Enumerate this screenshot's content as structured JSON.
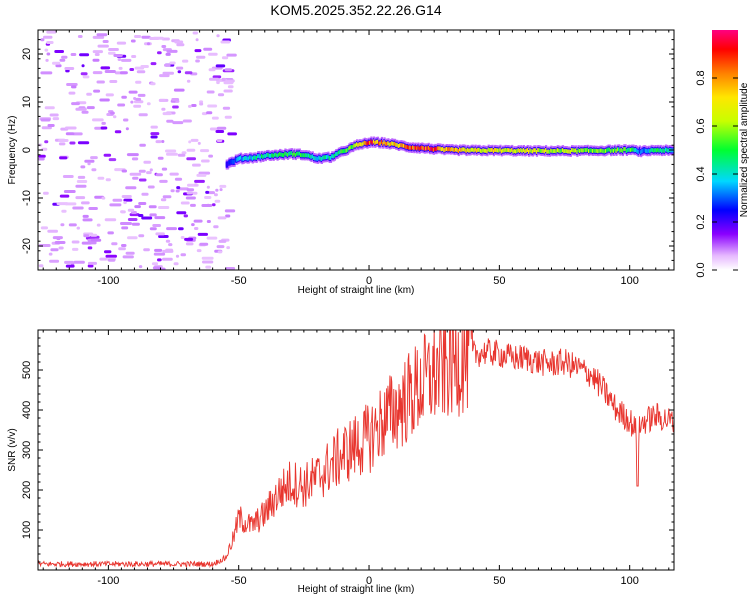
{
  "title": "KOM5.2025.352.22.26.G14",
  "chart_data": [
    {
      "type": "heatmap",
      "xlabel": "Height of straight line (km)",
      "ylabel": "Frequency (Hz)",
      "xlim": [
        -127,
        117
      ],
      "ylim": [
        -25,
        25
      ],
      "xticks": [
        -100,
        -50,
        0,
        50,
        100
      ],
      "yticks": [
        -20,
        -10,
        0,
        10,
        20
      ],
      "ridge": {
        "x": [
          -55,
          -50,
          -45,
          -40,
          -35,
          -30,
          -25,
          -20,
          -15,
          -10,
          -5,
          0,
          5,
          10,
          15,
          20,
          25,
          30,
          40,
          50,
          60,
          70,
          80,
          90,
          100,
          104,
          110,
          117
        ],
        "freq": [
          -3,
          -1.8,
          -1.6,
          -1.2,
          -1.0,
          -0.8,
          -1.0,
          -1.8,
          -1.5,
          -0.2,
          1.0,
          1.6,
          1.5,
          1.1,
          0.6,
          0.4,
          0.2,
          0.0,
          -0.1,
          -0.1,
          -0.2,
          -0.2,
          -0.2,
          -0.1,
          0.0,
          -0.3,
          0.0,
          -0.2
        ],
        "amplitude": [
          0.2,
          0.35,
          0.4,
          0.45,
          0.45,
          0.5,
          0.45,
          0.4,
          0.45,
          0.5,
          0.6,
          0.9,
          0.75,
          0.7,
          0.8,
          0.85,
          0.85,
          0.75,
          0.7,
          0.65,
          0.65,
          0.6,
          0.6,
          0.55,
          0.5,
          0.3,
          0.45,
          0.4
        ]
      },
      "noise_region": [
        -127,
        -60
      ],
      "colorbar": {
        "label": "Normalized spectral amplitude",
        "range": [
          0,
          1
        ],
        "ticks": [
          0.0,
          0.2,
          0.4,
          0.6,
          0.8
        ],
        "tick_labels": [
          "0.0",
          "0.2",
          "0.4",
          "0.6",
          "0.8"
        ]
      }
    },
    {
      "type": "line",
      "xlabel": "Height of straight line (km)",
      "ylabel": "SNR (v/v)",
      "xlim": [
        -127,
        117
      ],
      "ylim": [
        0,
        600
      ],
      "xticks": [
        -100,
        -50,
        0,
        50,
        100
      ],
      "yticks": [
        100,
        200,
        300,
        400,
        500
      ],
      "color": "#e8352e",
      "envelope": {
        "x": [
          -127,
          -60,
          -55,
          -52,
          -50,
          -45,
          -40,
          -35,
          -30,
          -25,
          -20,
          -15,
          -10,
          -5,
          0,
          5,
          10,
          15,
          20,
          25,
          30,
          35,
          40,
          45,
          50,
          55,
          60,
          65,
          70,
          75,
          80,
          85,
          90,
          95,
          100,
          103,
          105,
          110,
          117
        ],
        "y": [
          15,
          15,
          30,
          80,
          130,
          110,
          140,
          190,
          220,
          210,
          230,
          260,
          290,
          310,
          330,
          370,
          400,
          430,
          460,
          490,
          510,
          530,
          540,
          545,
          540,
          530,
          530,
          520,
          515,
          520,
          505,
          490,
          450,
          400,
          375,
          340,
          370,
          385,
          370
        ]
      }
    }
  ]
}
